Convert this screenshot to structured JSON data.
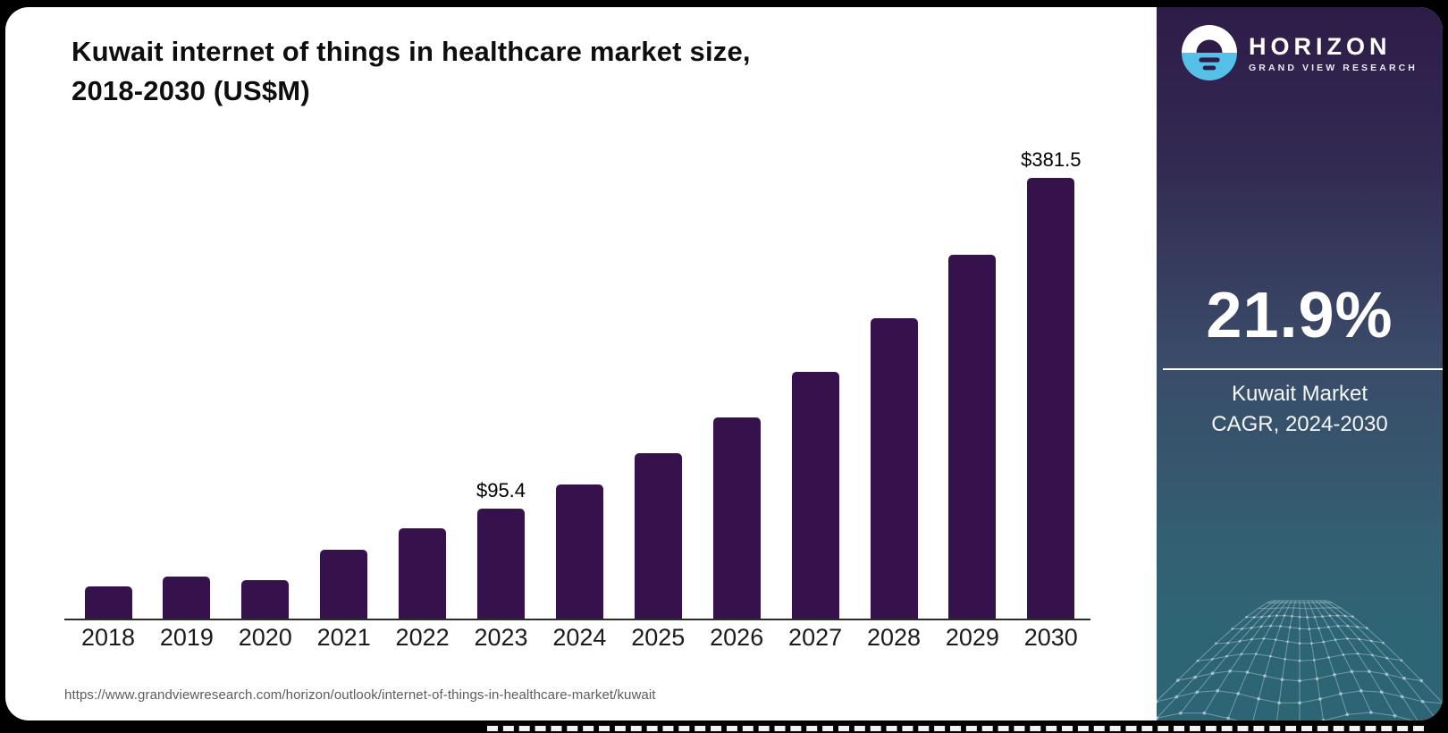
{
  "chart": {
    "title_line1": "Kuwait internet of things in healthcare market size,",
    "title_line2": "2018-2030 (US$M)",
    "source_url": "https://www.grandviewresearch.com/horizon/outlook/internet-of-things-in-healthcare-market/kuwait",
    "bar_color": "#35124B",
    "axis_color": "#2b2b2b"
  },
  "chart_data": {
    "type": "bar",
    "title": "Kuwait internet of things in healthcare market size, 2018-2030 (US$M)",
    "unit": "US$M",
    "categories": [
      "2018",
      "2019",
      "2020",
      "2021",
      "2022",
      "2023",
      "2024",
      "2025",
      "2026",
      "2027",
      "2028",
      "2029",
      "2030"
    ],
    "values": [
      27.6,
      36.6,
      33.3,
      59.5,
      78.1,
      95.4,
      116.3,
      143.0,
      174.0,
      213.5,
      259.9,
      314.8,
      381.5
    ],
    "data_labels": [
      {
        "category": "2023",
        "text": "$95.4"
      },
      {
        "category": "2030",
        "text": "$381.5"
      }
    ],
    "ylim": [
      0,
      400
    ],
    "grid": false,
    "legend": false,
    "y_axis_shown": false
  },
  "sidebar": {
    "logo": {
      "icon": "horizon-sun-circle-icon",
      "brand": "HORIZON",
      "subbrand": "GRAND VIEW RESEARCH",
      "icon_blue": "#55C1E9",
      "icon_dark": "#2E1C48"
    },
    "stat": {
      "value": "21.9%",
      "caption_line1": "Kuwait Market",
      "caption_line2": "CAGR, 2024-2030"
    },
    "gradient_top": "#2E1C48",
    "gradient_mid": "#3A4A68",
    "gradient_bottom": "#2D6574"
  }
}
